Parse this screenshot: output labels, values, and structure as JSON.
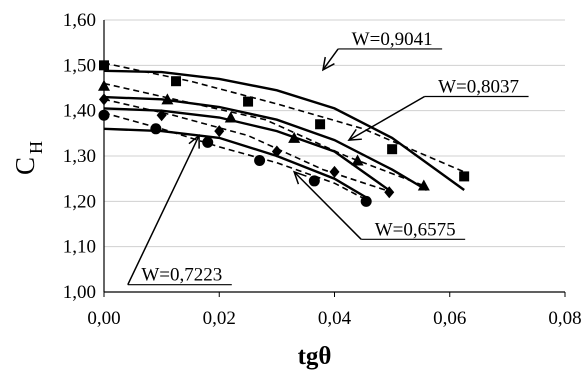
{
  "chart_data": {
    "type": "scatter",
    "title": "",
    "xlabel": "tgθ",
    "ylabel_main": "C",
    "ylabel_sub": "H",
    "xlim": [
      0,
      0.08
    ],
    "ylim": [
      1.0,
      1.6
    ],
    "grid": "horizontal",
    "x_ticks": [
      "0,00",
      "0,02",
      "0,04",
      "0,06",
      "0,08"
    ],
    "y_ticks": [
      "1,00",
      "1,10",
      "1,20",
      "1,30",
      "1,40",
      "1,50",
      "1,60"
    ],
    "series": [
      {
        "name": "W=0,9041",
        "marker": "square",
        "points": [
          [
            0.0,
            1.5
          ],
          [
            0.0125,
            1.465
          ],
          [
            0.025,
            1.42
          ],
          [
            0.0375,
            1.37
          ],
          [
            0.05,
            1.315
          ],
          [
            0.0625,
            1.255
          ]
        ],
        "fit_solid": [
          [
            0.0,
            1.488
          ],
          [
            0.01,
            1.485
          ],
          [
            0.02,
            1.47
          ],
          [
            0.03,
            1.445
          ],
          [
            0.04,
            1.405
          ],
          [
            0.05,
            1.34
          ],
          [
            0.0625,
            1.225
          ]
        ],
        "fit_dashed": [
          [
            0.0,
            1.505
          ],
          [
            0.015,
            1.465
          ],
          [
            0.03,
            1.415
          ],
          [
            0.045,
            1.36
          ],
          [
            0.0625,
            1.265
          ]
        ]
      },
      {
        "name": "W=0,8037",
        "marker": "triangle",
        "points": [
          [
            0.0,
            1.455
          ],
          [
            0.011,
            1.425
          ],
          [
            0.022,
            1.385
          ],
          [
            0.033,
            1.34
          ],
          [
            0.044,
            1.29
          ],
          [
            0.0555,
            1.235
          ]
        ],
        "fit_solid": [
          [
            0.0,
            1.43
          ],
          [
            0.01,
            1.425
          ],
          [
            0.02,
            1.408
          ],
          [
            0.03,
            1.38
          ],
          [
            0.04,
            1.335
          ],
          [
            0.05,
            1.27
          ],
          [
            0.056,
            1.225
          ]
        ],
        "fit_dashed": [
          [
            0.0,
            1.46
          ],
          [
            0.014,
            1.42
          ],
          [
            0.028,
            1.38
          ],
          [
            0.042,
            1.3
          ],
          [
            0.056,
            1.232
          ]
        ]
      },
      {
        "name": "W=0,7223",
        "marker": "diamond",
        "points": [
          [
            0.0,
            1.425
          ],
          [
            0.01,
            1.39
          ],
          [
            0.02,
            1.355
          ],
          [
            0.03,
            1.31
          ],
          [
            0.04,
            1.265
          ],
          [
            0.0495,
            1.22
          ]
        ],
        "fit_solid": [
          [
            0.0,
            1.405
          ],
          [
            0.01,
            1.4
          ],
          [
            0.02,
            1.385
          ],
          [
            0.03,
            1.355
          ],
          [
            0.04,
            1.31
          ],
          [
            0.05,
            1.22
          ]
        ],
        "fit_dashed": [
          [
            0.0,
            1.425
          ],
          [
            0.012,
            1.39
          ],
          [
            0.025,
            1.345
          ],
          [
            0.038,
            1.27
          ],
          [
            0.05,
            1.22
          ]
        ]
      },
      {
        "name": "W=0,6575",
        "marker": "circle",
        "points": [
          [
            0.0,
            1.39
          ],
          [
            0.009,
            1.36
          ],
          [
            0.018,
            1.33
          ],
          [
            0.027,
            1.29
          ],
          [
            0.0365,
            1.245
          ],
          [
            0.0455,
            1.2
          ]
        ],
        "fit_solid": [
          [
            0.0,
            1.36
          ],
          [
            0.01,
            1.355
          ],
          [
            0.02,
            1.34
          ],
          [
            0.03,
            1.3
          ],
          [
            0.04,
            1.25
          ],
          [
            0.046,
            1.205
          ]
        ],
        "fit_dashed": [
          [
            0.0,
            1.395
          ],
          [
            0.01,
            1.36
          ],
          [
            0.02,
            1.32
          ],
          [
            0.03,
            1.285
          ],
          [
            0.04,
            1.24
          ],
          [
            0.046,
            1.2
          ]
        ]
      }
    ],
    "annotations": [
      {
        "text": "W=0,9041",
        "x": 0.05,
        "y": 1.545,
        "arrow_to": [
          0.038,
          1.49
        ]
      },
      {
        "text": "W=0,8037",
        "x": 0.065,
        "y": 1.44,
        "arrow_to": [
          0.0425,
          1.335
        ]
      },
      {
        "text": "W=0,6575",
        "x": 0.054,
        "y": 1.125,
        "arrow_to": [
          0.033,
          1.265
        ]
      },
      {
        "text": "W=0,7223",
        "x": 0.0135,
        "y": 1.025,
        "arrow_to": [
          0.0165,
          1.345
        ]
      }
    ]
  }
}
